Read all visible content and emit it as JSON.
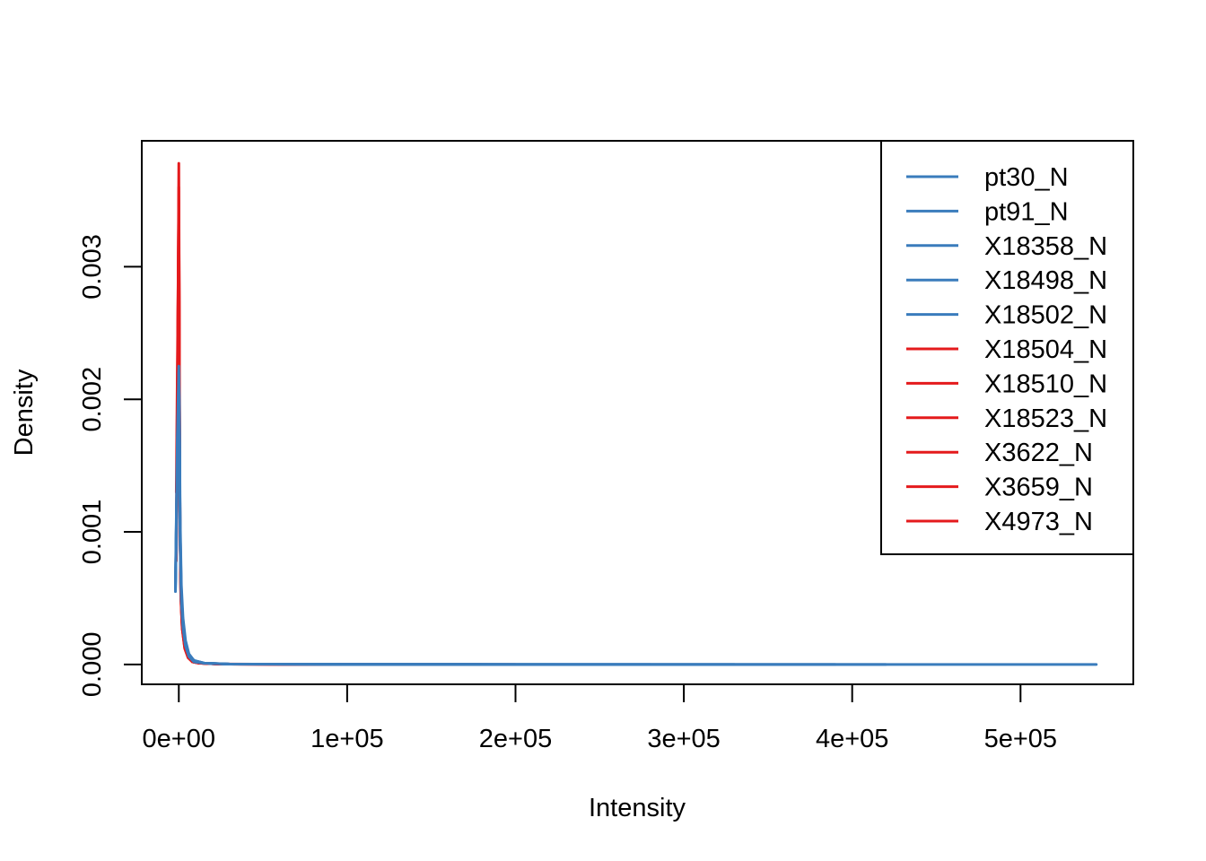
{
  "colors": {
    "blue": "#3a7cbc",
    "red": "#e41a1c"
  },
  "chart_data": {
    "type": "line",
    "title": "",
    "xlabel": "Intensity",
    "ylabel": "Density",
    "xlim": [
      -22000,
      567000
    ],
    "ylim": [
      -0.00015,
      0.00395
    ],
    "x_ticks": [
      0,
      100000,
      200000,
      300000,
      400000,
      500000
    ],
    "x_tick_labels": [
      "0e+00",
      "1e+05",
      "2e+05",
      "3e+05",
      "4e+05",
      "5e+05"
    ],
    "y_ticks": [
      0,
      0.001,
      0.002,
      0.003
    ],
    "y_tick_labels": [
      "0.000",
      "0.001",
      "0.002",
      "0.003"
    ],
    "grid": false,
    "legend_position": "top-right",
    "series": [
      {
        "name": "pt30_N",
        "color": "#3a7cbc",
        "x": [
          -2000,
          -800,
          0,
          400,
          800,
          1500,
          2500,
          4000,
          6000,
          9000,
          15000,
          30000,
          80000,
          250000,
          545000
        ],
        "y": [
          0.00055,
          0.0015,
          0.0022,
          0.0019,
          0.0011,
          0.0006,
          0.00035,
          0.00018,
          8e-05,
          3e-05,
          1e-05,
          3e-06,
          1e-06,
          0,
          0
        ]
      },
      {
        "name": "pt91_N",
        "color": "#3a7cbc",
        "x": [
          -2000,
          -800,
          0,
          400,
          800,
          1500,
          2500,
          4000,
          6000,
          9000,
          15000,
          30000,
          80000,
          200000,
          420000
        ],
        "y": [
          0.0006,
          0.0016,
          0.00215,
          0.0018,
          0.001,
          0.00055,
          0.0003,
          0.00015,
          7e-05,
          3e-05,
          1e-05,
          3e-06,
          1e-06,
          0,
          0
        ]
      },
      {
        "name": "X18358_N",
        "color": "#3a7cbc",
        "x": [
          -2000,
          -800,
          0,
          400,
          800,
          1500,
          2500,
          4000,
          6000,
          9000,
          15000,
          30000,
          80000,
          200000,
          390000
        ],
        "y": [
          0.00058,
          0.0017,
          0.0021,
          0.0017,
          0.0009,
          0.0005,
          0.00028,
          0.00014,
          6e-05,
          2e-05,
          1e-05,
          2e-06,
          1e-06,
          0,
          0
        ]
      },
      {
        "name": "X18498_N",
        "color": "#3a7cbc",
        "x": [
          -2000,
          -800,
          0,
          400,
          800,
          1500,
          2500,
          4000,
          6000,
          9000,
          15000,
          30000,
          80000,
          200000,
          330000
        ],
        "y": [
          0.00062,
          0.00175,
          0.00225,
          0.00185,
          0.00095,
          0.00052,
          0.0003,
          0.00015,
          7e-05,
          3e-05,
          1e-05,
          3e-06,
          1e-06,
          0,
          0
        ]
      },
      {
        "name": "X18502_N",
        "color": "#3a7cbc",
        "x": [
          -2000,
          -800,
          0,
          400,
          800,
          1500,
          2500,
          4000,
          6000,
          9000,
          15000,
          30000,
          80000,
          150000,
          280000
        ],
        "y": [
          0.00057,
          0.0016,
          0.00205,
          0.0017,
          0.0009,
          0.0005,
          0.00028,
          0.00014,
          6e-05,
          2e-05,
          1e-05,
          2e-06,
          1e-06,
          0,
          0
        ]
      },
      {
        "name": "X18504_N",
        "color": "#e41a1c",
        "x": [
          -1500,
          -600,
          0,
          300,
          600,
          1200,
          2000,
          3500,
          5500,
          8000,
          12000,
          25000,
          60000,
          120000,
          200000
        ],
        "y": [
          0.0008,
          0.0023,
          0.00378,
          0.0026,
          0.0013,
          0.0006,
          0.00032,
          0.00015,
          7e-05,
          3e-05,
          1e-05,
          3e-06,
          1e-06,
          0,
          0
        ]
      },
      {
        "name": "X18510_N",
        "color": "#e41a1c",
        "x": [
          -1500,
          -600,
          0,
          300,
          600,
          1200,
          2000,
          3500,
          5500,
          8000,
          12000,
          25000,
          60000,
          120000,
          180000
        ],
        "y": [
          0.0009,
          0.0025,
          0.0036,
          0.0024,
          0.0012,
          0.00055,
          0.0003,
          0.00014,
          6e-05,
          2e-05,
          1e-05,
          2e-06,
          1e-06,
          0,
          0
        ]
      },
      {
        "name": "X18523_N",
        "color": "#e41a1c",
        "x": [
          -1500,
          -600,
          0,
          300,
          600,
          1200,
          2000,
          3500,
          5500,
          8000,
          12000,
          25000,
          60000,
          100000,
          150000
        ],
        "y": [
          0.00085,
          0.0024,
          0.0034,
          0.0023,
          0.00115,
          0.00052,
          0.00028,
          0.00013,
          6e-05,
          2e-05,
          1e-05,
          2e-06,
          1e-06,
          0,
          0
        ]
      },
      {
        "name": "X3622_N",
        "color": "#e41a1c",
        "x": [
          -1500,
          -600,
          0,
          300,
          600,
          1200,
          2000,
          3500,
          5500,
          8000,
          12000,
          25000,
          50000,
          90000,
          130000
        ],
        "y": [
          0.0009,
          0.0023,
          0.0032,
          0.0022,
          0.0011,
          0.0005,
          0.00027,
          0.00012,
          5e-05,
          2e-05,
          1e-05,
          2e-06,
          1e-06,
          0,
          0
        ]
      },
      {
        "name": "X3659_N",
        "color": "#e41a1c",
        "x": [
          -1500,
          -600,
          0,
          300,
          600,
          1200,
          2000,
          3500,
          5500,
          8000,
          12000,
          25000,
          50000,
          80000,
          120000
        ],
        "y": [
          0.0013,
          0.0026,
          0.0035,
          0.0025,
          0.0012,
          0.00055,
          0.0003,
          0.00014,
          6e-05,
          2e-05,
          1e-05,
          2e-06,
          1e-06,
          0,
          0
        ]
      },
      {
        "name": "X4973_N",
        "color": "#e41a1c",
        "x": [
          -1500,
          -600,
          0,
          300,
          600,
          1200,
          2000,
          3500,
          5500,
          8000,
          12000,
          25000,
          50000,
          80000,
          110000
        ],
        "y": [
          0.00078,
          0.0022,
          0.0033,
          0.0023,
          0.00115,
          0.00052,
          0.00028,
          0.00013,
          6e-05,
          2e-05,
          1e-05,
          2e-06,
          1e-06,
          0,
          0
        ]
      }
    ]
  }
}
